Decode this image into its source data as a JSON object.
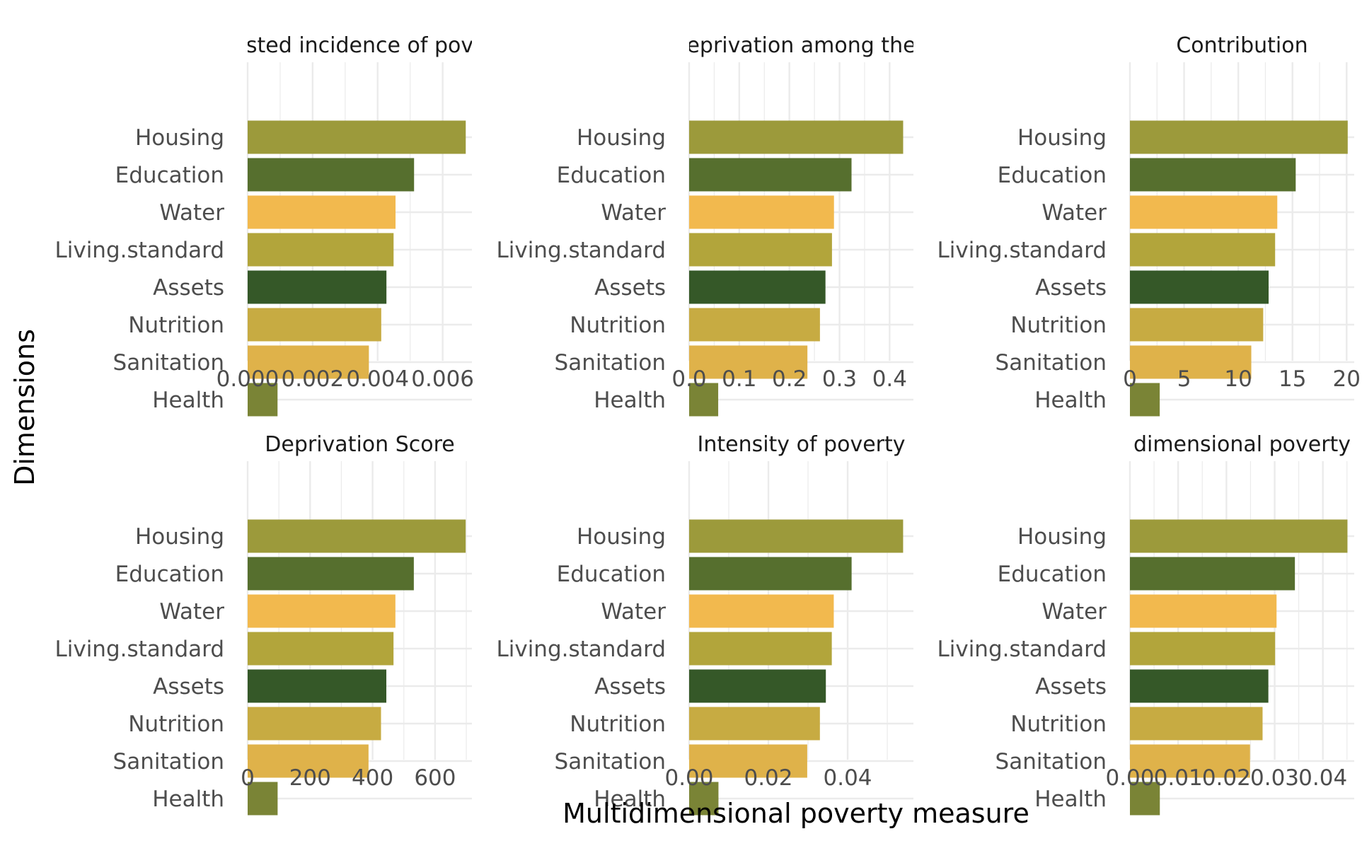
{
  "chart_data": {
    "type": "bar",
    "orientation": "horizontal",
    "xlabel": "Multidimensional poverty measure",
    "ylabel": "Dimensions",
    "categories": [
      "Housing",
      "Education",
      "Water",
      "Living.standard",
      "Assets",
      "Nutrition",
      "Sanitation",
      "Health"
    ],
    "category_colors": [
      "#9C9A3B",
      "#566F2E",
      "#F2B94E",
      "#B2A53B",
      "#355828",
      "#C7AB42",
      "#DFB24A",
      "#7A8436"
    ],
    "grid": true,
    "legend": "none",
    "panels": [
      {
        "title": "sted incidence of pov",
        "xlim": [
          0,
          0.0069
        ],
        "xticks": [
          0,
          0.002,
          0.004,
          0.006
        ],
        "xtick_labels": [
          "0.000",
          "0.002",
          "0.004",
          "0.006"
        ],
        "values": [
          0.00671,
          0.00512,
          0.00455,
          0.00449,
          0.00427,
          0.00411,
          0.00373,
          0.00092
        ]
      },
      {
        "title": "eprivation among the",
        "xlim": [
          0,
          0.4475
        ],
        "xticks": [
          0,
          0.1,
          0.2,
          0.3,
          0.4
        ],
        "xtick_labels": [
          "0.0",
          "0.1",
          "0.2",
          "0.3",
          "0.4"
        ],
        "values": [
          0.427,
          0.324,
          0.289,
          0.285,
          0.272,
          0.261,
          0.236,
          0.058
        ]
      },
      {
        "title": "Contribution",
        "xlim": [
          0,
          20.7
        ],
        "xticks": [
          0,
          5,
          10,
          15,
          20
        ],
        "xtick_labels": [
          "0",
          "5",
          "10",
          "15",
          "20"
        ],
        "values": [
          20.1,
          15.3,
          13.6,
          13.4,
          12.8,
          12.3,
          11.2,
          2.75
        ]
      },
      {
        "title": "Deprivation Score",
        "xlim": [
          0,
          718
        ],
        "xticks": [
          0,
          200,
          400,
          600
        ],
        "xtick_labels": [
          "0",
          "200",
          "400",
          "600"
        ],
        "values": [
          698,
          532,
          473,
          467,
          444,
          427,
          387,
          96
        ]
      },
      {
        "title": "Intensity of poverty",
        "xlim": [
          0,
          0.0566
        ],
        "xticks": [
          0,
          0.02,
          0.04
        ],
        "xtick_labels": [
          "0.00",
          "0.02",
          "0.04"
        ],
        "values": [
          0.054,
          0.041,
          0.0365,
          0.036,
          0.0345,
          0.033,
          0.0298,
          0.0074
        ]
      },
      {
        "title": "dimensional poverty",
        "xlim": [
          0,
          0.0465
        ],
        "xticks": [
          0,
          0.01,
          0.02,
          0.03,
          0.04
        ],
        "xtick_labels": [
          "0.00",
          "0.01",
          "0.02",
          "0.03",
          "0.04"
        ],
        "values": [
          0.0451,
          0.0342,
          0.0304,
          0.0301,
          0.0287,
          0.0275,
          0.0249,
          0.0062
        ]
      }
    ]
  }
}
